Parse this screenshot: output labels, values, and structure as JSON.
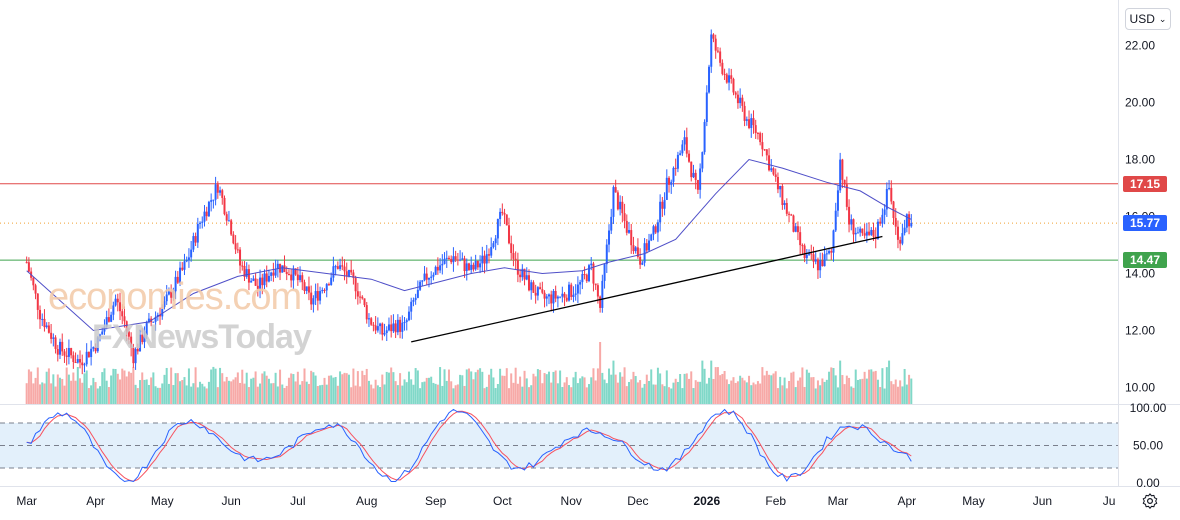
{
  "toolbar": {
    "currency_label": "USD"
  },
  "watermark": {
    "brand_top": "economies.com",
    "brand_bottom": "FXNewsToday"
  },
  "colors": {
    "up": "#2962ff",
    "down": "#f23645",
    "ma": "#4f4fc8",
    "resistance": "#e04848",
    "support": "#3fa34d",
    "current": "#2962ff",
    "trend": "#000000",
    "stoch_k": "#2962ff",
    "stoch_d": "#f7525f",
    "vol_up": "#80d8c8",
    "vol_down": "#f7a9a7"
  },
  "chart_data": {
    "type": "candlestick",
    "title": "",
    "currency": "USD",
    "y_ticks": [
      10,
      12,
      14,
      16,
      18,
      20,
      22
    ],
    "y_tick_labels": [
      "10.00",
      "12.00",
      "14.00",
      "16.00",
      "18.00",
      "20.00",
      "22.00"
    ],
    "x_tick_labels": [
      "Mar",
      "Apr",
      "May",
      "Jun",
      "Jul",
      "Aug",
      "Sep",
      "Oct",
      "Nov",
      "Dec",
      "2026",
      "Feb",
      "Mar",
      "Apr",
      "May",
      "Jun",
      "Ju"
    ],
    "x_tick_days": [
      0,
      31,
      61,
      92,
      122,
      153,
      184,
      214,
      245,
      275,
      306,
      337,
      365,
      396,
      426,
      457,
      487
    ],
    "bold_tick": "2026",
    "x_range_days": [
      -12,
      491
    ],
    "price_range": [
      9.42,
      23.6
    ],
    "price_path": [
      [
        0,
        14.4
      ],
      [
        6,
        12.6
      ],
      [
        14,
        11.4
      ],
      [
        24,
        10.9
      ],
      [
        32,
        11.6
      ],
      [
        40,
        13.1
      ],
      [
        44,
        12.3
      ],
      [
        48,
        11.1
      ],
      [
        54,
        12.1
      ],
      [
        62,
        12.9
      ],
      [
        72,
        14.4
      ],
      [
        78,
        15.8
      ],
      [
        86,
        17.1
      ],
      [
        92,
        15.6
      ],
      [
        96,
        14.3
      ],
      [
        104,
        13.5
      ],
      [
        112,
        14.3
      ],
      [
        118,
        14.1
      ],
      [
        124,
        13.6
      ],
      [
        128,
        13.0
      ],
      [
        134,
        13.6
      ],
      [
        140,
        14.3
      ],
      [
        148,
        13.6
      ],
      [
        154,
        12.4
      ],
      [
        160,
        11.9
      ],
      [
        166,
        12.2
      ],
      [
        170,
        12.1
      ],
      [
        174,
        13.0
      ],
      [
        180,
        13.9
      ],
      [
        186,
        14.3
      ],
      [
        192,
        14.6
      ],
      [
        200,
        14.1
      ],
      [
        206,
        14.5
      ],
      [
        214,
        16.1
      ],
      [
        220,
        14.3
      ],
      [
        226,
        13.6
      ],
      [
        232,
        13.1
      ],
      [
        240,
        13.2
      ],
      [
        248,
        13.5
      ],
      [
        254,
        14.2
      ],
      [
        258,
        12.8
      ],
      [
        264,
        16.9
      ],
      [
        270,
        15.6
      ],
      [
        276,
        14.5
      ],
      [
        282,
        15.4
      ],
      [
        288,
        17.1
      ],
      [
        296,
        18.6
      ],
      [
        302,
        16.7
      ],
      [
        304,
        18.5
      ],
      [
        308,
        22.3
      ],
      [
        312,
        21.4
      ],
      [
        318,
        20.4
      ],
      [
        324,
        19.4
      ],
      [
        330,
        18.8
      ],
      [
        336,
        17.4
      ],
      [
        342,
        16.2
      ],
      [
        350,
        14.6
      ],
      [
        356,
        14.3
      ],
      [
        362,
        14.7
      ],
      [
        366,
        18.0
      ],
      [
        370,
        15.8
      ],
      [
        376,
        15.2
      ],
      [
        382,
        15.4
      ],
      [
        388,
        17.0
      ],
      [
        392,
        15.1
      ],
      [
        396,
        16.0
      ],
      [
        398,
        15.77
      ]
    ],
    "ma_path": [
      [
        0,
        14.1
      ],
      [
        30,
        12.0
      ],
      [
        55,
        12.3
      ],
      [
        75,
        13.3
      ],
      [
        95,
        13.9
      ],
      [
        115,
        14.2
      ],
      [
        135,
        14.0
      ],
      [
        155,
        13.8
      ],
      [
        170,
        13.4
      ],
      [
        185,
        13.7
      ],
      [
        200,
        14.0
      ],
      [
        215,
        14.2
      ],
      [
        232,
        14.0
      ],
      [
        250,
        14.1
      ],
      [
        262,
        14.4
      ],
      [
        278,
        14.7
      ],
      [
        292,
        15.2
      ],
      [
        310,
        16.8
      ],
      [
        325,
        18.0
      ],
      [
        340,
        17.7
      ],
      [
        360,
        17.2
      ],
      [
        375,
        16.9
      ],
      [
        388,
        16.3
      ],
      [
        398,
        15.9
      ]
    ],
    "support_trendline": {
      "start": {
        "day": 173,
        "price": 11.6
      },
      "end": {
        "day": 385,
        "price": 15.3
      }
    },
    "horizontal_lines": [
      {
        "name": "resistance",
        "price": 17.15,
        "label": "17.15",
        "style": "solid"
      },
      {
        "name": "current",
        "price": 15.77,
        "label": "15.77",
        "style": "dotted"
      },
      {
        "name": "support",
        "price": 14.47,
        "label": "14.47",
        "style": "solid"
      }
    ],
    "volume": {
      "max_relative": 1.0
    },
    "stochastic": {
      "y_ticks": [
        0,
        50,
        100
      ],
      "y_tick_labels": [
        "0.00",
        "50.00",
        "100.00"
      ],
      "upper_band": 80,
      "lower_band": 20,
      "middle": 50,
      "range": [
        -4,
        104
      ]
    }
  }
}
